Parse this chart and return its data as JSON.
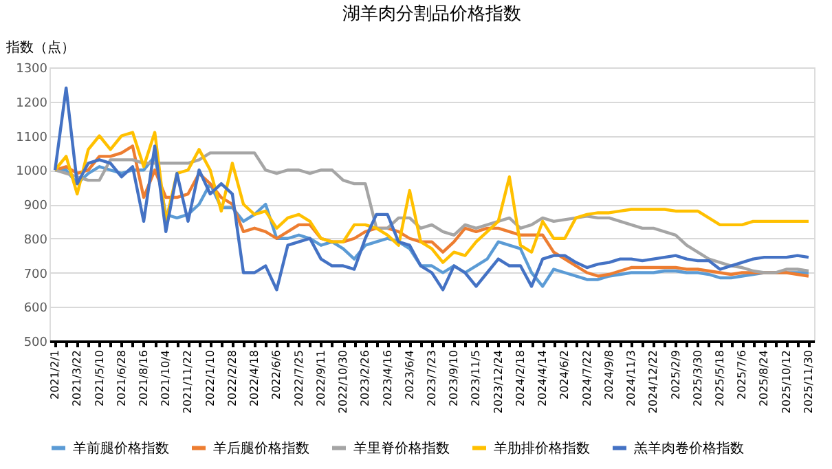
{
  "chart_data": {
    "type": "line",
    "title": "湖羊肉分割品价格指数",
    "ylabel": "指数（点）",
    "categories": [
      "2021/2/1",
      null,
      "2021/3/22",
      null,
      "2021/5/10",
      null,
      "2021/6/28",
      null,
      "2021/8/16",
      null,
      "2021/10/4",
      null,
      "2021/11/22",
      null,
      "2022/1/10",
      null,
      "2022/2/28",
      null,
      "2022/4/18",
      null,
      "2022/6/6",
      null,
      "2022/7/25",
      null,
      "2022/9/11",
      null,
      "2022/10/30",
      null,
      "2023/2/26",
      null,
      "2023/4/16",
      null,
      "2023/6/4",
      null,
      "2023/7/23",
      null,
      "2023/9/10",
      null,
      "2023/11/5",
      null,
      "2023/12/24",
      null,
      "2024/2/18",
      null,
      "2024/4/14",
      null,
      "2024/6/2",
      null,
      "2024/7/22",
      null,
      "2024/9/8",
      null,
      "2024/11/3",
      null,
      "2024/12/22",
      null,
      "2025/2/9",
      null,
      "2025/3/30",
      null,
      "2025/5/18",
      null,
      "2025/7/6",
      null,
      "2025/8/24",
      null,
      "2025/10/12",
      null,
      "2025/11/30"
    ],
    "series": [
      {
        "name": "羊前腿价格指数",
        "color": "#5b9bd5",
        "values": [
          1000,
          1000,
          960,
          990,
          1010,
          1000,
          990,
          1000,
          1000,
          1040,
          870,
          860,
          870,
          900,
          960,
          890,
          890,
          850,
          870,
          900,
          800,
          800,
          810,
          800,
          780,
          790,
          770,
          740,
          780,
          790,
          800,
          790,
          770,
          720,
          720,
          700,
          720,
          700,
          720,
          740,
          790,
          780,
          770,
          700,
          660,
          710,
          700,
          690,
          680,
          680,
          690,
          695,
          700,
          700,
          700,
          705,
          705,
          700,
          700,
          695,
          685,
          685,
          690,
          695,
          700,
          700,
          700,
          700,
          700
        ]
      },
      {
        "name": "羊后腿价格指数",
        "color": "#ed7d31",
        "values": [
          1000,
          1010,
          990,
          1000,
          1040,
          1040,
          1050,
          1070,
          920,
          1000,
          920,
          920,
          930,
          990,
          960,
          920,
          900,
          820,
          830,
          820,
          800,
          820,
          840,
          840,
          800,
          790,
          790,
          800,
          820,
          830,
          830,
          820,
          800,
          790,
          790,
          760,
          790,
          830,
          820,
          830,
          830,
          820,
          810,
          810,
          810,
          760,
          740,
          720,
          700,
          690,
          695,
          705,
          715,
          715,
          715,
          715,
          715,
          710,
          710,
          705,
          700,
          695,
          700,
          700,
          700,
          700,
          700,
          695,
          690
        ]
      },
      {
        "name": "羊里脊价格指数",
        "color": "#a5a5a5",
        "values": [
          1000,
          990,
          980,
          970,
          970,
          1030,
          1030,
          1030,
          1020,
          1020,
          1020,
          1020,
          1020,
          1030,
          1050,
          1050,
          1050,
          1050,
          1050,
          1000,
          990,
          1000,
          1000,
          990,
          1000,
          1000,
          970,
          960,
          960,
          830,
          830,
          860,
          860,
          830,
          840,
          820,
          810,
          840,
          830,
          840,
          850,
          860,
          830,
          840,
          860,
          850,
          855,
          860,
          865,
          860,
          860,
          850,
          840,
          830,
          830,
          820,
          810,
          780,
          760,
          740,
          730,
          720,
          715,
          705,
          700,
          700,
          710,
          710,
          705
        ]
      },
      {
        "name": "羊肋排价格指数",
        "color": "#ffc000",
        "values": [
          1000,
          1040,
          930,
          1060,
          1100,
          1060,
          1100,
          1110,
          1010,
          1110,
          850,
          990,
          1000,
          1060,
          1000,
          880,
          1020,
          900,
          870,
          880,
          830,
          860,
          870,
          850,
          800,
          790,
          790,
          840,
          840,
          830,
          810,
          780,
          940,
          790,
          770,
          730,
          760,
          750,
          790,
          820,
          850,
          980,
          780,
          760,
          850,
          800,
          800,
          860,
          870,
          875,
          875,
          880,
          885,
          885,
          885,
          885,
          880,
          880,
          880,
          860,
          840,
          840,
          840,
          850,
          850,
          850,
          850,
          850,
          850
        ]
      },
      {
        "name": "羔羊肉卷价格指数",
        "color": "#4472c4",
        "values": [
          1000,
          1240,
          960,
          1020,
          1030,
          1020,
          980,
          1010,
          850,
          1070,
          820,
          990,
          850,
          1000,
          930,
          960,
          930,
          700,
          700,
          720,
          650,
          780,
          790,
          800,
          740,
          720,
          720,
          710,
          800,
          870,
          870,
          790,
          780,
          720,
          700,
          650,
          720,
          700,
          660,
          700,
          740,
          720,
          720,
          660,
          740,
          750,
          750,
          730,
          715,
          725,
          730,
          740,
          740,
          735,
          740,
          745,
          750,
          740,
          735,
          735,
          710,
          720,
          730,
          740,
          745,
          745,
          745,
          750,
          745
        ]
      }
    ],
    "ylim": [
      500,
      1300
    ],
    "yticks": [
      500,
      600,
      700,
      800,
      900,
      1000,
      1100,
      1200,
      1300
    ],
    "grid": "y",
    "legend": "bottom",
    "line_style": "solid",
    "marker": "none"
  }
}
